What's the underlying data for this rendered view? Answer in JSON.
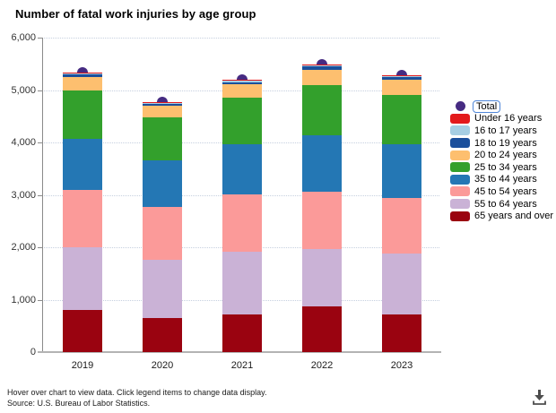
{
  "title": "Number of fatal work injuries by age group",
  "footer": {
    "note": "Hover over chart to view data. Click legend items to change data display.",
    "source": "Source: U.S. Bureau of Labor Statistics."
  },
  "icons": {
    "download": "download-icon"
  },
  "chart_data": {
    "type": "bar",
    "stacked": true,
    "title": "Number of fatal work injuries by age group",
    "xlabel": "",
    "ylabel": "",
    "ylim": [
      0,
      6000
    ],
    "grid": "horizontal-dotted",
    "legend_position": "right",
    "categories": [
      "2019",
      "2020",
      "2021",
      "2022",
      "2023"
    ],
    "yticks": [
      {
        "label": "0",
        "value": 0
      },
      {
        "label": "1,000",
        "value": 1000
      },
      {
        "label": "2,000",
        "value": 2000
      },
      {
        "label": "3,000",
        "value": 3000
      },
      {
        "label": "4,000",
        "value": 4000
      },
      {
        "label": "5,000",
        "value": 5000
      },
      {
        "label": "6,000",
        "value": 6000
      }
    ],
    "totals": {
      "name": "Total",
      "marker": "circle",
      "color": "#462b82",
      "focused": true,
      "values": [
        5333,
        4764,
        5190,
        5486,
        5283
      ]
    },
    "series": [
      {
        "name": "Under 16 years",
        "color": "#e31a1c",
        "values": [
          22,
          12,
          15,
          16,
          12
        ]
      },
      {
        "name": "16 to 17 years",
        "color": "#a6cee3",
        "values": [
          20,
          14,
          22,
          24,
          22
        ]
      },
      {
        "name": "18 to 19 years",
        "color": "#1a4f9c",
        "values": [
          49,
          43,
          46,
          62,
          55
        ]
      },
      {
        "name": "20 to 24 years",
        "color": "#fdbf6f",
        "values": [
          256,
          213,
          246,
          290,
          285
        ]
      },
      {
        "name": "25 to 34 years",
        "color": "#33a02c",
        "values": [
          915,
          820,
          890,
          965,
          945
        ]
      },
      {
        "name": "35 to 44 years",
        "color": "#2477b4",
        "values": [
          980,
          900,
          970,
          1070,
          1030
        ]
      },
      {
        "name": "45 to 54 years",
        "color": "#fb9a99",
        "values": [
          1085,
          1000,
          1085,
          1085,
          1060
        ]
      },
      {
        "name": "55 to 64 years",
        "color": "#cab2d6",
        "values": [
          1200,
          1108,
          1196,
          1104,
          1154
        ]
      },
      {
        "name": "65 years and over",
        "color": "#9a0310",
        "values": [
          806,
          654,
          720,
          870,
          720
        ]
      }
    ]
  }
}
